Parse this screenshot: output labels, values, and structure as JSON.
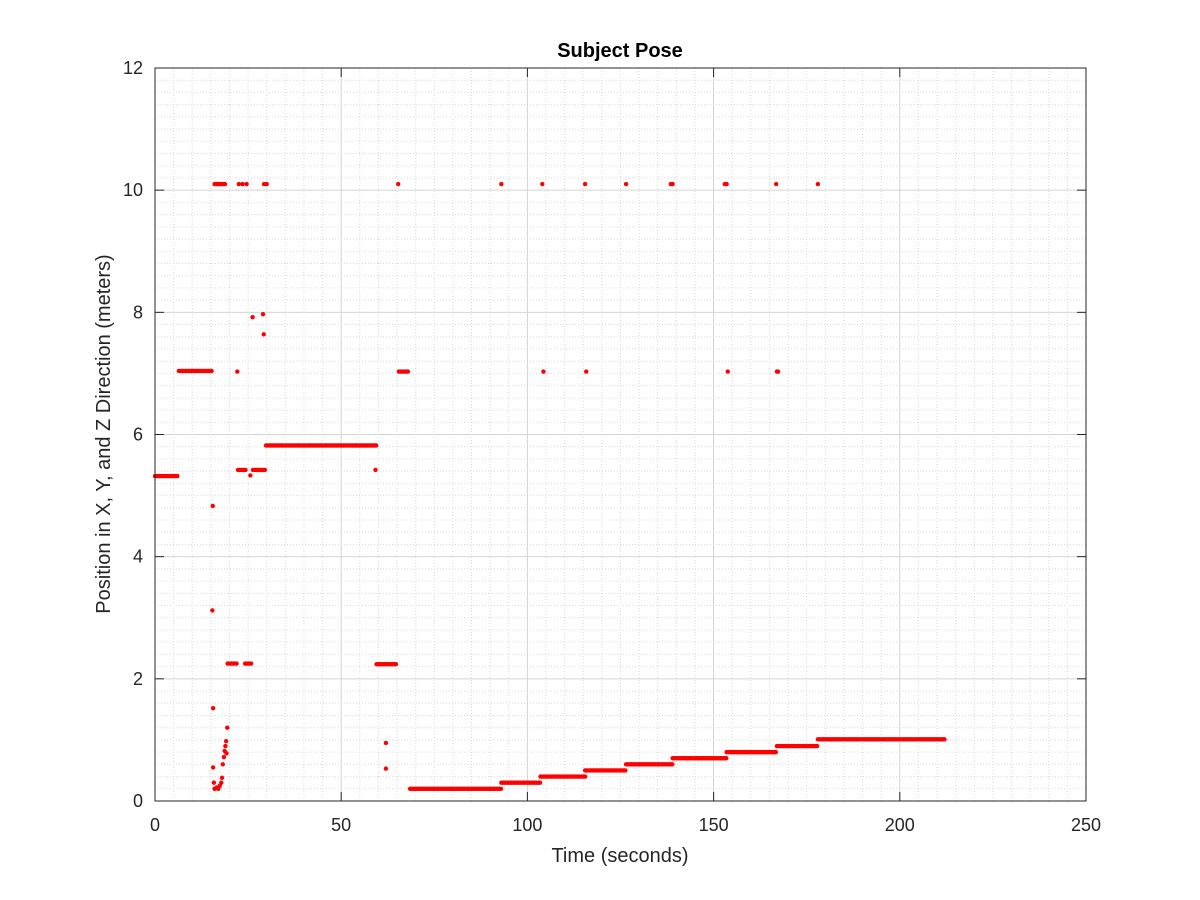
{
  "chart_data": {
    "type": "scatter",
    "title": "Subject Pose",
    "xlabel": "Time (seconds)",
    "ylabel": "Position in X, Y, and Z Direction (meters)",
    "xlim": [
      0,
      250
    ],
    "ylim": [
      0,
      12
    ],
    "xticks": [
      "0",
      "50",
      "100",
      "150",
      "200",
      "250"
    ],
    "yticks": [
      "0",
      "2",
      "4",
      "6",
      "8",
      "10",
      "12"
    ],
    "grid": true,
    "minor_grid": true,
    "marker_color": "#ff0000",
    "segments": [
      {
        "x_start": 0,
        "x_end": 6.3,
        "y": 5.32
      },
      {
        "x_start": 6.4,
        "x_end": 15.5,
        "y": 7.04
      },
      {
        "x_start": 16.0,
        "x_end": 18.8,
        "y": 10.1
      },
      {
        "x_start": 19.5,
        "x_end": 22.0,
        "y": 2.25
      },
      {
        "x_start": 22.3,
        "x_end": 24.5,
        "y": 5.42
      },
      {
        "x_start": 24.2,
        "x_end": 26.0,
        "y": 2.25
      },
      {
        "x_start": 26.3,
        "x_end": 29.5,
        "y": 5.42
      },
      {
        "x_start": 29.8,
        "x_end": 59.5,
        "y": 5.82
      },
      {
        "x_start": 59.5,
        "x_end": 65.0,
        "y": 2.24
      },
      {
        "x_start": 65.5,
        "x_end": 68.0,
        "y": 7.03
      },
      {
        "x_start": 68.5,
        "x_end": 93.0,
        "y": 0.2
      },
      {
        "x_start": 93.0,
        "x_end": 103.5,
        "y": 0.3
      },
      {
        "x_start": 103.5,
        "x_end": 115.5,
        "y": 0.4
      },
      {
        "x_start": 115.5,
        "x_end": 126.5,
        "y": 0.5
      },
      {
        "x_start": 126.5,
        "x_end": 139.0,
        "y": 0.6
      },
      {
        "x_start": 139.0,
        "x_end": 153.5,
        "y": 0.7
      },
      {
        "x_start": 153.5,
        "x_end": 167.0,
        "y": 0.8
      },
      {
        "x_start": 167.0,
        "x_end": 178.0,
        "y": 0.9
      },
      {
        "x_start": 178.0,
        "x_end": 212.0,
        "y": 1.01
      }
    ],
    "points": [
      {
        "x": 15.5,
        "y": 4.83
      },
      {
        "x": 15.4,
        "y": 3.12
      },
      {
        "x": 15.6,
        "y": 1.52
      },
      {
        "x": 15.6,
        "y": 0.55
      },
      {
        "x": 15.8,
        "y": 0.3
      },
      {
        "x": 16.0,
        "y": 0.2
      },
      {
        "x": 16.5,
        "y": 0.22
      },
      {
        "x": 17.0,
        "y": 0.2
      },
      {
        "x": 17.4,
        "y": 0.25
      },
      {
        "x": 17.8,
        "y": 0.3
      },
      {
        "x": 18.0,
        "y": 0.38
      },
      {
        "x": 18.2,
        "y": 0.6
      },
      {
        "x": 18.5,
        "y": 0.72
      },
      {
        "x": 18.7,
        "y": 0.82
      },
      {
        "x": 18.9,
        "y": 0.9
      },
      {
        "x": 19.1,
        "y": 0.98
      },
      {
        "x": 19.2,
        "y": 0.78
      },
      {
        "x": 19.4,
        "y": 1.2
      },
      {
        "x": 22.1,
        "y": 7.03
      },
      {
        "x": 22.5,
        "y": 10.1
      },
      {
        "x": 23.5,
        "y": 10.1
      },
      {
        "x": 24.6,
        "y": 10.1
      },
      {
        "x": 25.6,
        "y": 5.33
      },
      {
        "x": 26.2,
        "y": 7.92
      },
      {
        "x": 29.0,
        "y": 7.97
      },
      {
        "x": 29.2,
        "y": 7.64
      },
      {
        "x": 29.3,
        "y": 10.1
      },
      {
        "x": 30.0,
        "y": 10.1
      },
      {
        "x": 59.2,
        "y": 5.42
      },
      {
        "x": 62.0,
        "y": 0.95
      },
      {
        "x": 62.0,
        "y": 0.53
      },
      {
        "x": 65.3,
        "y": 10.1
      },
      {
        "x": 93.0,
        "y": 10.1
      },
      {
        "x": 104.0,
        "y": 10.1
      },
      {
        "x": 104.3,
        "y": 7.03
      },
      {
        "x": 115.5,
        "y": 10.1
      },
      {
        "x": 115.8,
        "y": 7.03
      },
      {
        "x": 126.5,
        "y": 10.1
      },
      {
        "x": 138.5,
        "y": 10.1
      },
      {
        "x": 139.0,
        "y": 10.1
      },
      {
        "x": 153.0,
        "y": 10.1
      },
      {
        "x": 153.5,
        "y": 10.1
      },
      {
        "x": 153.8,
        "y": 7.03
      },
      {
        "x": 166.8,
        "y": 10.1
      },
      {
        "x": 167.0,
        "y": 7.03
      },
      {
        "x": 167.3,
        "y": 7.03
      },
      {
        "x": 178.0,
        "y": 10.1
      }
    ]
  }
}
